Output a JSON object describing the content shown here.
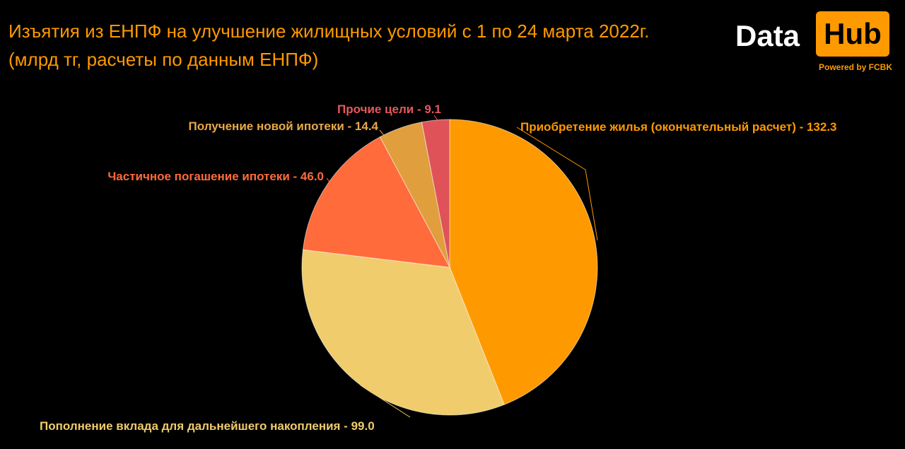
{
  "header": {
    "title_line1": "Изъятия из ЕНПФ на улучшение жилищных условий с 1 по 24 марта 2022г.",
    "title_line2": "(млрд тг, расчеты по данным ЕНПФ)"
  },
  "logo": {
    "word1": "Data",
    "word2": "Hub",
    "tagline": "Powered by FCBK"
  },
  "chart_data": {
    "type": "pie",
    "title": "Изъятия из ЕНПФ на улучшение жилищных условий с 1 по 24 марта 2022г.",
    "subtitle": "(млрд тг, расчеты по данным ЕНПФ)",
    "start_angle_deg": 0,
    "direction": "clockwise",
    "slices": [
      {
        "name": "Приобретение жилья (окончательный расчет)",
        "value": 132.3,
        "label": "Приобретение жилья (окончательный расчет) - 132.3",
        "color": "#FF9900",
        "label_color": "#FF9900"
      },
      {
        "name": "Пополнение вклада для дальнейшего накопления",
        "value": 99.0,
        "label": "Пополнение вклада для дальнейшего накопления - 99.0",
        "color": "#F0CC6C",
        "label_color": "#F0CC6C"
      },
      {
        "name": "Частичное погашение ипотеки",
        "value": 46.0,
        "label": "Частичное погашение ипотеки - 46.0",
        "color": "#FF6B3A",
        "label_color": "#FF6B3A"
      },
      {
        "name": "Получение новой ипотеки",
        "value": 14.4,
        "label": "Получение новой ипотеки - 14.4",
        "color": "#E09E3C",
        "label_color": "#E8A84A"
      },
      {
        "name": "Прочие цели",
        "value": 9.1,
        "label": "Прочие цели - 9.1",
        "color": "#DF5358",
        "label_color": "#E5585C"
      }
    ]
  }
}
